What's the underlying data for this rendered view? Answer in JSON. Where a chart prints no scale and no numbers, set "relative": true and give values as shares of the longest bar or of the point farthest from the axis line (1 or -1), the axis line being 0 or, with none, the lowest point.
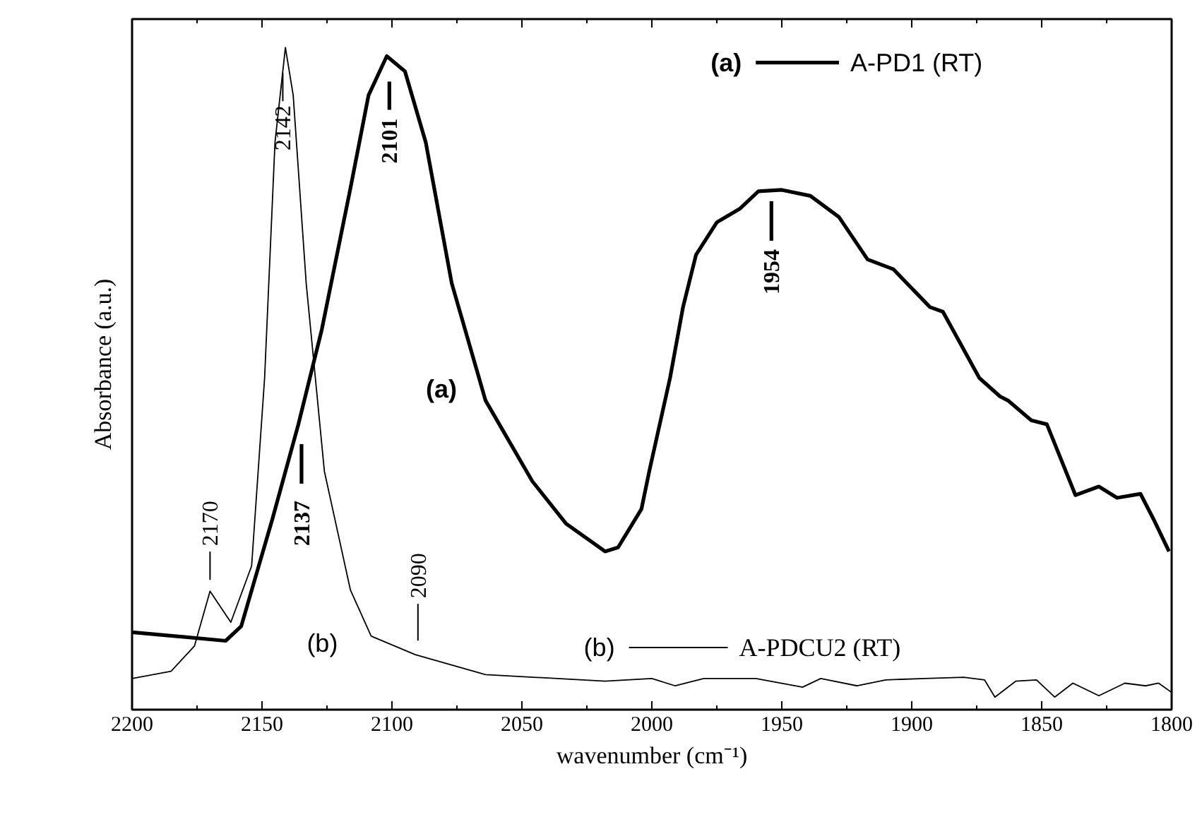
{
  "chart_data": {
    "type": "line",
    "relative": true,
    "xlabel": "wavenumber (cm⁻¹)",
    "ylabel": "Absorbance (a.u.)",
    "xlim": [
      2200,
      1800
    ],
    "xticks": [
      2200,
      2150,
      2100,
      2050,
      2000,
      1950,
      1900,
      1850,
      1800
    ],
    "legend": "top right",
    "grid": false,
    "series": [
      {
        "name": "A-PD1 (RT)",
        "color": "#000000",
        "x": [
          2200,
          2164,
          2158,
          2146,
          2136,
          2127,
          2116,
          2109,
          2102,
          2095,
          2087,
          2077,
          2064,
          2046,
          2033,
          2018,
          2013,
          2004,
          2001,
          1993,
          1988,
          1983,
          1975,
          1966,
          1959,
          1950,
          1939,
          1928,
          1917,
          1907,
          1893,
          1888,
          1874,
          1866,
          1863,
          1854,
          1848,
          1837,
          1828,
          1821,
          1812,
          1807,
          1801
        ],
        "values": [
          0.117,
          0.104,
          0.126,
          0.288,
          0.431,
          0.574,
          0.787,
          0.928,
          0.987,
          0.964,
          0.857,
          0.644,
          0.467,
          0.345,
          0.281,
          0.239,
          0.245,
          0.303,
          0.36,
          0.501,
          0.608,
          0.687,
          0.736,
          0.757,
          0.783,
          0.785,
          0.776,
          0.744,
          0.68,
          0.665,
          0.608,
          0.601,
          0.501,
          0.473,
          0.467,
          0.437,
          0.431,
          0.324,
          0.337,
          0.32,
          0.326,
          0.288,
          0.239
        ]
      },
      {
        "name": "A-PDCU2 (RT)",
        "color": "#000000",
        "x": [
          2200,
          2185,
          2176,
          2170,
          2162,
          2154,
          2149,
          2145,
          2141,
          2138,
          2133,
          2126,
          2116,
          2108,
          2091,
          2064,
          2018,
          2000,
          1991,
          1980,
          1960,
          1942,
          1935,
          1921,
          1910,
          1895,
          1880,
          1872,
          1868,
          1860,
          1852,
          1845,
          1838,
          1828,
          1818,
          1810,
          1805,
          1800
        ],
        "values": [
          0.047,
          0.058,
          0.096,
          0.179,
          0.132,
          0.217,
          0.501,
          0.857,
          1.0,
          0.928,
          0.644,
          0.36,
          0.181,
          0.111,
          0.083,
          0.053,
          0.043,
          0.047,
          0.036,
          0.047,
          0.047,
          0.034,
          0.047,
          0.036,
          0.045,
          0.047,
          0.049,
          0.045,
          0.019,
          0.043,
          0.045,
          0.019,
          0.04,
          0.021,
          0.04,
          0.036,
          0.04,
          0.026
        ]
      }
    ],
    "annotations": [
      {
        "text": "2142",
        "x": 2142,
        "y": 1.0
      },
      {
        "text": "2101",
        "x": 2101,
        "y": 0.987
      },
      {
        "text": "1954",
        "x": 1954,
        "y": 0.785
      },
      {
        "text": "2170",
        "x": 2170,
        "y": 0.179
      },
      "2137",
      {
        "text": "2090",
        "x": 2090,
        "y": 0.083
      },
      "(a)",
      "(b)",
      "(a)",
      "(b)"
    ]
  }
}
